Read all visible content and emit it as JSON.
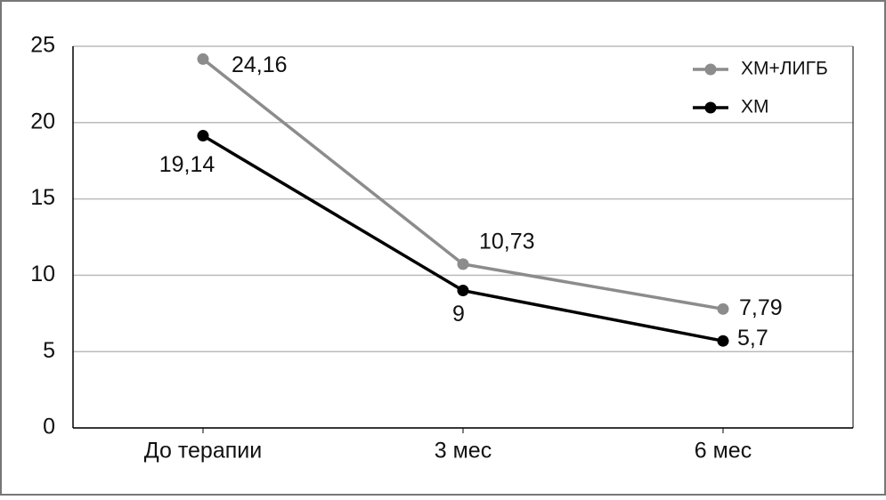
{
  "chart_data": {
    "type": "line",
    "categories": [
      "До терапии",
      "3 мес",
      "6 мес"
    ],
    "series": [
      {
        "name": "ХМ+ЛИГБ",
        "color": "#8c8c8c",
        "values": [
          24.16,
          10.73,
          7.79
        ],
        "value_labels": [
          "24,16",
          "10,73",
          "7,79"
        ]
      },
      {
        "name": "ХМ",
        "color": "#000000",
        "values": [
          19.14,
          9,
          5.7
        ],
        "value_labels": [
          "19,14",
          "9",
          "5,7"
        ]
      }
    ],
    "ylim": [
      0,
      25
    ],
    "yticks": [
      0,
      5,
      10,
      15,
      20,
      25
    ],
    "grid": true,
    "legend": "top-right"
  }
}
